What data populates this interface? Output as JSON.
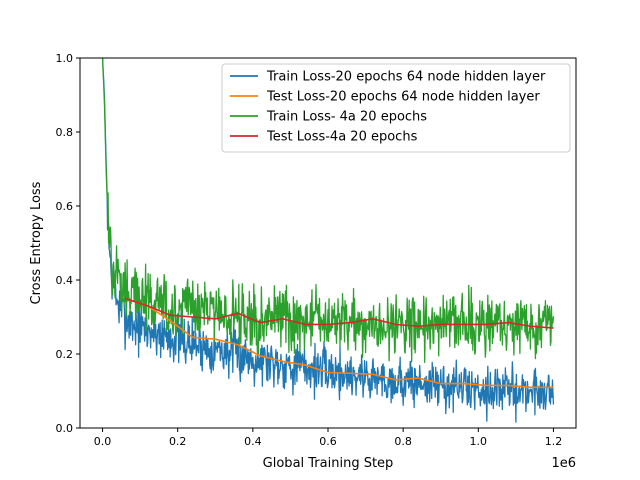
{
  "chart_data": {
    "type": "line",
    "title": "",
    "xlabel": "Global Training Step",
    "ylabel": "Cross Entropy Loss",
    "x_offset_label": "1e6",
    "xlim": [
      -0.06,
      1.26
    ],
    "ylim": [
      0.0,
      1.0
    ],
    "x_ticks": [
      0.0,
      0.2,
      0.4,
      0.6,
      0.8,
      1.0,
      1.2
    ],
    "x_tick_labels": [
      "0.0",
      "0.2",
      "0.4",
      "0.6",
      "0.8",
      "1.0",
      "1.2"
    ],
    "y_ticks": [
      0.0,
      0.2,
      0.4,
      0.6,
      0.8,
      1.0
    ],
    "y_tick_labels": [
      "0.0",
      "0.2",
      "0.4",
      "0.6",
      "0.8",
      "1.0"
    ],
    "grid": false,
    "legend_position": "top-right",
    "series": [
      {
        "name": "Train Loss-20 epochs 64 node hidden layer",
        "color": "#1f77b4",
        "noisy": true,
        "noise": 0.03,
        "x": [
          0.0,
          0.005,
          0.01,
          0.015,
          0.02,
          0.03,
          0.04,
          0.05,
          0.06,
          0.08,
          0.1,
          0.15,
          0.2,
          0.25,
          0.3,
          0.35,
          0.4,
          0.45,
          0.5,
          0.55,
          0.6,
          0.65,
          0.7,
          0.75,
          0.8,
          0.85,
          0.9,
          0.95,
          1.0,
          1.05,
          1.1,
          1.15,
          1.2
        ],
        "y": [
          1.0,
          0.9,
          0.7,
          0.55,
          0.45,
          0.38,
          0.34,
          0.32,
          0.3,
          0.28,
          0.27,
          0.255,
          0.24,
          0.225,
          0.215,
          0.2,
          0.19,
          0.18,
          0.17,
          0.16,
          0.155,
          0.145,
          0.14,
          0.13,
          0.125,
          0.12,
          0.115,
          0.11,
          0.105,
          0.105,
          0.1,
          0.1,
          0.1
        ]
      },
      {
        "name": "Test Loss-20 epochs 64 node hidden layer",
        "color": "#ff7f0e",
        "noisy": false,
        "x": [
          0.06,
          0.12,
          0.18,
          0.24,
          0.3,
          0.36,
          0.42,
          0.48,
          0.54,
          0.6,
          0.66,
          0.72,
          0.78,
          0.84,
          0.9,
          0.96,
          1.02,
          1.08,
          1.14,
          1.2
        ],
        "y": [
          0.35,
          0.33,
          0.29,
          0.245,
          0.24,
          0.225,
          0.195,
          0.18,
          0.17,
          0.15,
          0.148,
          0.145,
          0.13,
          0.135,
          0.12,
          0.12,
          0.115,
          0.115,
          0.11,
          0.11
        ]
      },
      {
        "name": "Train Loss- 4a 20 epochs",
        "color": "#2ca02c",
        "noisy": true,
        "noise": 0.036,
        "x": [
          0.0,
          0.005,
          0.01,
          0.015,
          0.02,
          0.03,
          0.04,
          0.05,
          0.06,
          0.08,
          0.1,
          0.15,
          0.2,
          0.3,
          0.4,
          0.5,
          0.6,
          0.7,
          0.8,
          0.9,
          1.0,
          1.1,
          1.2
        ],
        "y": [
          1.0,
          0.88,
          0.68,
          0.56,
          0.5,
          0.44,
          0.4,
          0.38,
          0.37,
          0.36,
          0.35,
          0.335,
          0.32,
          0.31,
          0.3,
          0.295,
          0.29,
          0.285,
          0.285,
          0.28,
          0.28,
          0.275,
          0.275
        ]
      },
      {
        "name": "Test Loss-4a 20 epochs",
        "color": "#d62728",
        "noisy": false,
        "x": [
          0.06,
          0.12,
          0.18,
          0.24,
          0.3,
          0.36,
          0.42,
          0.48,
          0.54,
          0.6,
          0.66,
          0.72,
          0.78,
          0.84,
          0.9,
          0.96,
          1.02,
          1.08,
          1.14,
          1.2
        ],
        "y": [
          0.35,
          0.33,
          0.305,
          0.3,
          0.295,
          0.31,
          0.285,
          0.295,
          0.28,
          0.28,
          0.285,
          0.295,
          0.28,
          0.275,
          0.28,
          0.28,
          0.28,
          0.285,
          0.275,
          0.27
        ]
      }
    ]
  }
}
